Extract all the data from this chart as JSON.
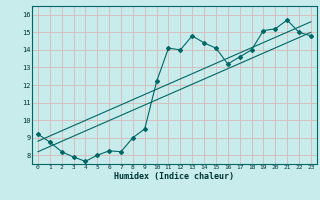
{
  "xlabel": "Humidex (Indice chaleur)",
  "bg_color": "#c8ecec",
  "grid_color": "#d8b8b8",
  "line_color": "#006666",
  "xlim": [
    -0.5,
    23.5
  ],
  "ylim": [
    7.5,
    16.5
  ],
  "xticks": [
    0,
    1,
    2,
    3,
    4,
    5,
    6,
    7,
    8,
    9,
    10,
    11,
    12,
    13,
    14,
    15,
    16,
    17,
    18,
    19,
    20,
    21,
    22,
    23
  ],
  "yticks": [
    8,
    9,
    10,
    11,
    12,
    13,
    14,
    15,
    16
  ],
  "data_x": [
    0,
    1,
    2,
    3,
    4,
    5,
    6,
    7,
    8,
    9,
    10,
    11,
    12,
    13,
    14,
    15,
    16,
    17,
    18,
    19,
    20,
    21,
    22,
    23
  ],
  "data_y": [
    9.2,
    8.75,
    8.2,
    7.9,
    7.65,
    8.0,
    8.25,
    8.2,
    9.0,
    9.5,
    12.2,
    14.1,
    14.0,
    14.8,
    14.4,
    14.1,
    13.2,
    13.6,
    14.0,
    15.1,
    15.2,
    15.7,
    15.0,
    14.8
  ],
  "line1_x": [
    0,
    23
  ],
  "line1_y": [
    8.8,
    15.6
  ],
  "line2_x": [
    0,
    23
  ],
  "line2_y": [
    8.2,
    15.0
  ]
}
